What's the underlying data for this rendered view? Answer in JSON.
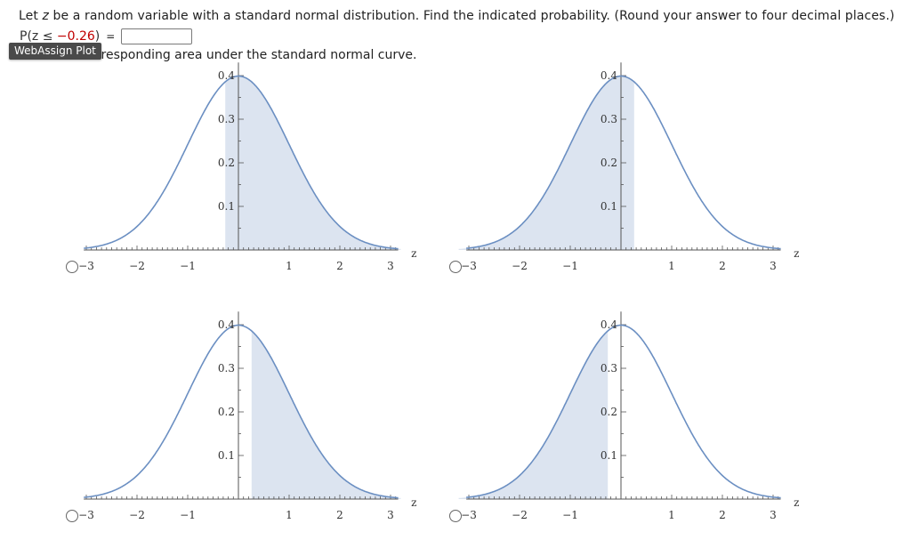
{
  "question": {
    "text_prefix": "Let ",
    "variable": "z",
    "text_suffix": " be a random variable with a standard normal distribution. Find the indicated probability. (Round your answer to four decimal places.)"
  },
  "answer": {
    "prob_prefix": "P(z ≤ ",
    "prob_value": "−0.26",
    "prob_suffix": ")",
    "equals": "=",
    "input_value": ""
  },
  "tooltip": {
    "label": "WebAssign Plot"
  },
  "instruction": {
    "text": "rresponding area under the standard normal curve."
  },
  "colors": {
    "curve": "#6b8fc2",
    "shade": "#dce4f0",
    "axis": "#555555",
    "zero_label_red": "#c00000"
  },
  "graphs": {
    "x_label": "z",
    "x_ticks": [
      "−3",
      "−2",
      "−1",
      "1",
      "2",
      "3"
    ],
    "y_ticks": [
      "0.1",
      "0.2",
      "0.3",
      "0.4"
    ],
    "options": [
      {
        "name": "graph-option-1",
        "shade_from": -0.26,
        "shade_to": 3.2,
        "selected": false
      },
      {
        "name": "graph-option-2",
        "shade_from": -3.2,
        "shade_to": 0.26,
        "selected": false
      },
      {
        "name": "graph-option-3",
        "shade_from": 0.26,
        "shade_to": 3.2,
        "selected": false
      },
      {
        "name": "graph-option-4",
        "shade_from": -3.2,
        "shade_to": -0.26,
        "selected": false
      }
    ]
  }
}
